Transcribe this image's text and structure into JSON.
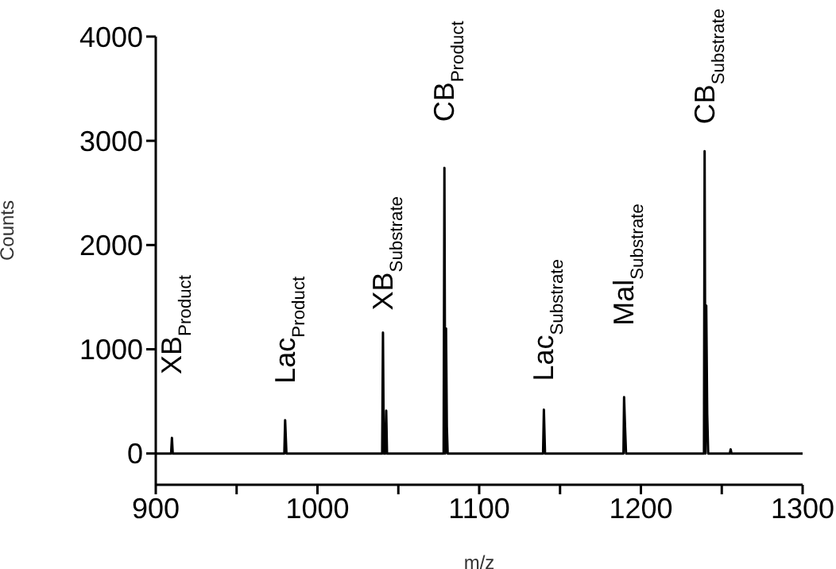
{
  "chart_data": {
    "type": "line",
    "xlabel": "m/z",
    "ylabel": "Counts",
    "xlim": [
      900,
      1300
    ],
    "xticks": [
      900,
      {
        "value": 950,
        "label": null
      },
      1000,
      {
        "value": 1050,
        "label": null
      },
      1100,
      {
        "value": 1150,
        "label": null
      },
      1200,
      {
        "value": 1250,
        "label": null
      },
      1300
    ],
    "ylim": [
      -300,
      4000
    ],
    "yticks": [
      0,
      1000,
      2000,
      3000,
      4000
    ],
    "grid": false,
    "marker": "none",
    "line_style": "solid",
    "series": [
      {
        "color": "#000000",
        "x": [
          900,
          909.5,
          910,
          910.5,
          979.5,
          980,
          980.8,
          1040,
          1040.5,
          1041,
          1042,
          1042.5,
          1043,
          1078,
          1078.5,
          1079,
          1079.5,
          1080,
          1080.5,
          1139.5,
          1140,
          1140.7,
          1189.2,
          1189.6,
          1190.2,
          1190.8,
          1239,
          1239.4,
          1239.9,
          1240.4,
          1241,
          1241.6,
          1255,
          1255.5,
          1256,
          1300
        ],
        "values": [
          0,
          0,
          150,
          0,
          0,
          320,
          0,
          0,
          1160,
          0,
          0,
          410,
          0,
          0,
          2740,
          0,
          1200,
          260,
          0,
          0,
          420,
          0,
          0,
          540,
          250,
          0,
          0,
          2900,
          0,
          1420,
          380,
          0,
          0,
          40,
          0,
          0
        ]
      }
    ],
    "annotations": [
      {
        "text": "XB$_{Product}$",
        "x": 910,
        "y": 150
      },
      {
        "text": "Lac$_{Product}$",
        "x": 980,
        "y": 320
      },
      {
        "text": "XB$_{Substrate}$",
        "x": 1040.5,
        "y": 1160
      },
      {
        "text": "CB$_{Product}$",
        "x": 1078.5,
        "y": 2740
      },
      {
        "text": "Lac$_{Substrate}$",
        "x": 1140,
        "y": 420
      },
      {
        "text": "Mal$_{Substrate}$",
        "x": 1189.6,
        "y": 540
      },
      {
        "text": "CB$_{Substrate}$",
        "x": 1239.4,
        "y": 2900
      }
    ]
  }
}
